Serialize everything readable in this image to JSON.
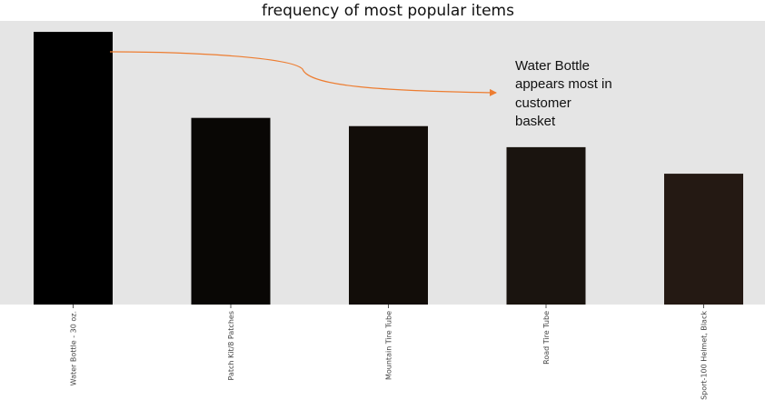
{
  "chart_data": {
    "type": "bar",
    "title": "frequency of most popular items",
    "xlabel": "",
    "ylabel": "",
    "categories": [
      "Water Bottle - 30 oz.",
      "Patch Kit/8 Patches",
      "Mountain Tire Tube",
      "Road Tire Tube",
      "Sport-100 Helmet, Black"
    ],
    "values": [
      298,
      204,
      195,
      172,
      143
    ],
    "ylim": [
      0,
      310
    ],
    "grid": false,
    "legend": "none",
    "yticks_visible": false,
    "annotation": {
      "lines": [
        "Water Bottle",
        "appears most in",
        "customer",
        "basket"
      ],
      "target_category": "Water Bottle - 30 oz."
    }
  },
  "colors": {
    "plot_background": "#e5e5e5",
    "bar_colors": [
      "#000000",
      "#090705",
      "#120d09",
      "#1a140f",
      "#241913"
    ],
    "annotation_arrow": "#ed7d31",
    "text": "#111111"
  }
}
